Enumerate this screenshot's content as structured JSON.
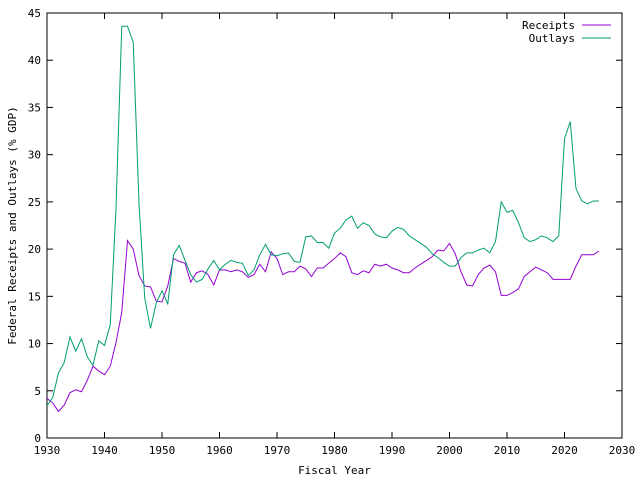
{
  "chart_data": {
    "type": "line",
    "xlabel": "Fiscal Year",
    "ylabel": "Federal Receipts and Outlays (% GDP)",
    "xlim": [
      1930,
      2030
    ],
    "ylim": [
      0,
      45
    ],
    "x_ticks": [
      1930,
      1940,
      1950,
      1960,
      1970,
      1980,
      1990,
      2000,
      2010,
      2020,
      2030
    ],
    "y_ticks": [
      0,
      5,
      10,
      15,
      20,
      25,
      30,
      35,
      40,
      45
    ],
    "grid": false,
    "legend_position": "top-right",
    "colors": {
      "Receipts": "#9400d3",
      "Outlays": "#009e73"
    },
    "series": [
      {
        "name": "Receipts",
        "points": [
          [
            1930,
            4.2
          ],
          [
            1931,
            3.7
          ],
          [
            1932,
            2.8
          ],
          [
            1933,
            3.5
          ],
          [
            1934,
            4.8
          ],
          [
            1935,
            5.1
          ],
          [
            1936,
            4.9
          ],
          [
            1937,
            6.1
          ],
          [
            1938,
            7.6
          ],
          [
            1939,
            7.1
          ],
          [
            1940,
            6.7
          ],
          [
            1941,
            7.6
          ],
          [
            1942,
            10.1
          ],
          [
            1943,
            13.3
          ],
          [
            1944,
            20.9
          ],
          [
            1945,
            20.0
          ],
          [
            1946,
            17.2
          ],
          [
            1947,
            16.1
          ],
          [
            1948,
            16.0
          ],
          [
            1949,
            14.5
          ],
          [
            1950,
            14.4
          ],
          [
            1951,
            16.1
          ],
          [
            1952,
            19.0
          ],
          [
            1953,
            18.7
          ],
          [
            1954,
            18.5
          ],
          [
            1955,
            16.5
          ],
          [
            1956,
            17.5
          ],
          [
            1957,
            17.7
          ],
          [
            1958,
            17.3
          ],
          [
            1959,
            16.2
          ],
          [
            1960,
            17.8
          ],
          [
            1961,
            17.8
          ],
          [
            1962,
            17.6
          ],
          [
            1963,
            17.8
          ],
          [
            1964,
            17.6
          ],
          [
            1965,
            17.0
          ],
          [
            1966,
            17.3
          ],
          [
            1967,
            18.4
          ],
          [
            1968,
            17.6
          ],
          [
            1969,
            19.7
          ],
          [
            1970,
            19.0
          ],
          [
            1971,
            17.3
          ],
          [
            1972,
            17.6
          ],
          [
            1973,
            17.6
          ],
          [
            1974,
            18.2
          ],
          [
            1975,
            17.9
          ],
          [
            1976,
            17.1
          ],
          [
            1977,
            18.0
          ],
          [
            1978,
            18.0
          ],
          [
            1979,
            18.5
          ],
          [
            1980,
            19.0
          ],
          [
            1981,
            19.6
          ],
          [
            1982,
            19.2
          ],
          [
            1983,
            17.5
          ],
          [
            1984,
            17.3
          ],
          [
            1985,
            17.7
          ],
          [
            1986,
            17.5
          ],
          [
            1987,
            18.4
          ],
          [
            1988,
            18.2
          ],
          [
            1989,
            18.4
          ],
          [
            1990,
            18.0
          ],
          [
            1991,
            17.8
          ],
          [
            1992,
            17.5
          ],
          [
            1993,
            17.5
          ],
          [
            1994,
            18.0
          ],
          [
            1995,
            18.4
          ],
          [
            1996,
            18.8
          ],
          [
            1997,
            19.2
          ],
          [
            1998,
            19.9
          ],
          [
            1999,
            19.8
          ],
          [
            2000,
            20.6
          ],
          [
            2001,
            19.5
          ],
          [
            2002,
            17.6
          ],
          [
            2003,
            16.2
          ],
          [
            2004,
            16.1
          ],
          [
            2005,
            17.3
          ],
          [
            2006,
            18.0
          ],
          [
            2007,
            18.3
          ],
          [
            2008,
            17.6
          ],
          [
            2009,
            15.1
          ],
          [
            2010,
            15.1
          ],
          [
            2011,
            15.4
          ],
          [
            2012,
            15.8
          ],
          [
            2013,
            17.1
          ],
          [
            2014,
            17.6
          ],
          [
            2015,
            18.1
          ],
          [
            2016,
            17.8
          ],
          [
            2017,
            17.5
          ],
          [
            2018,
            16.8
          ],
          [
            2019,
            16.8
          ],
          [
            2020,
            16.8
          ],
          [
            2021,
            16.8
          ],
          [
            2022,
            18.2
          ],
          [
            2023,
            19.4
          ],
          [
            2024,
            19.4
          ],
          [
            2025,
            19.4
          ],
          [
            2026,
            19.8
          ]
        ]
      },
      {
        "name": "Outlays",
        "points": [
          [
            1930,
            3.4
          ],
          [
            1931,
            4.3
          ],
          [
            1932,
            6.9
          ],
          [
            1933,
            8.0
          ],
          [
            1934,
            10.7
          ],
          [
            1935,
            9.2
          ],
          [
            1936,
            10.5
          ],
          [
            1937,
            8.6
          ],
          [
            1938,
            7.7
          ],
          [
            1939,
            10.3
          ],
          [
            1940,
            9.8
          ],
          [
            1941,
            12.0
          ],
          [
            1942,
            24.3
          ],
          [
            1943,
            43.6
          ],
          [
            1944,
            43.6
          ],
          [
            1945,
            41.9
          ],
          [
            1946,
            24.8
          ],
          [
            1947,
            14.8
          ],
          [
            1948,
            11.6
          ],
          [
            1949,
            14.3
          ],
          [
            1950,
            15.6
          ],
          [
            1951,
            14.2
          ],
          [
            1952,
            19.4
          ],
          [
            1953,
            20.4
          ],
          [
            1954,
            18.8
          ],
          [
            1955,
            17.3
          ],
          [
            1956,
            16.5
          ],
          [
            1957,
            16.8
          ],
          [
            1958,
            17.9
          ],
          [
            1959,
            18.8
          ],
          [
            1960,
            17.8
          ],
          [
            1961,
            18.4
          ],
          [
            1962,
            18.8
          ],
          [
            1963,
            18.6
          ],
          [
            1964,
            18.5
          ],
          [
            1965,
            17.2
          ],
          [
            1966,
            17.8
          ],
          [
            1967,
            19.4
          ],
          [
            1968,
            20.5
          ],
          [
            1969,
            19.4
          ],
          [
            1970,
            19.3
          ],
          [
            1971,
            19.5
          ],
          [
            1972,
            19.6
          ],
          [
            1973,
            18.7
          ],
          [
            1974,
            18.6
          ],
          [
            1975,
            21.3
          ],
          [
            1976,
            21.4
          ],
          [
            1977,
            20.7
          ],
          [
            1978,
            20.7
          ],
          [
            1979,
            20.1
          ],
          [
            1980,
            21.7
          ],
          [
            1981,
            22.2
          ],
          [
            1982,
            23.1
          ],
          [
            1983,
            23.5
          ],
          [
            1984,
            22.2
          ],
          [
            1985,
            22.8
          ],
          [
            1986,
            22.5
          ],
          [
            1987,
            21.6
          ],
          [
            1988,
            21.3
          ],
          [
            1989,
            21.2
          ],
          [
            1990,
            21.9
          ],
          [
            1991,
            22.3
          ],
          [
            1992,
            22.1
          ],
          [
            1993,
            21.4
          ],
          [
            1994,
            21.0
          ],
          [
            1995,
            20.6
          ],
          [
            1996,
            20.2
          ],
          [
            1997,
            19.5
          ],
          [
            1998,
            19.1
          ],
          [
            1999,
            18.6
          ],
          [
            2000,
            18.2
          ],
          [
            2001,
            18.2
          ],
          [
            2002,
            19.1
          ],
          [
            2003,
            19.6
          ],
          [
            2004,
            19.6
          ],
          [
            2005,
            19.9
          ],
          [
            2006,
            20.1
          ],
          [
            2007,
            19.6
          ],
          [
            2008,
            20.8
          ],
          [
            2009,
            25.0
          ],
          [
            2010,
            23.9
          ],
          [
            2011,
            24.1
          ],
          [
            2012,
            22.8
          ],
          [
            2013,
            21.2
          ],
          [
            2014,
            20.8
          ],
          [
            2015,
            21.0
          ],
          [
            2016,
            21.4
          ],
          [
            2017,
            21.2
          ],
          [
            2018,
            20.8
          ],
          [
            2019,
            21.4
          ],
          [
            2020,
            31.7
          ],
          [
            2021,
            33.5
          ],
          [
            2022,
            26.4
          ],
          [
            2023,
            25.1
          ],
          [
            2024,
            24.8
          ],
          [
            2025,
            25.1
          ],
          [
            2026,
            25.1
          ]
        ]
      }
    ]
  }
}
